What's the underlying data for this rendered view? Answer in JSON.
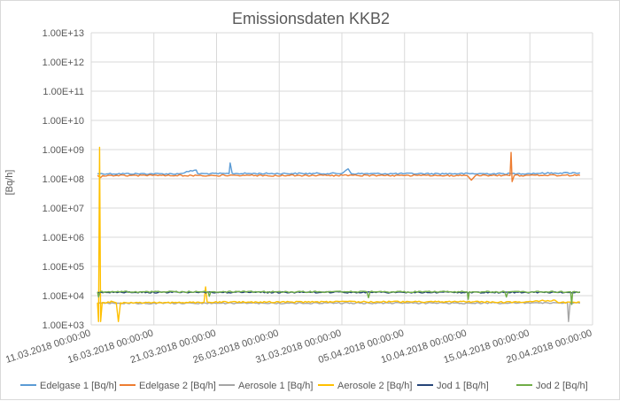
{
  "chart_data": {
    "type": "line",
    "title": "Emissionsdaten KKB2",
    "ylabel": "[Bq/h]",
    "xlabel": "",
    "y_scale": "log",
    "ylim": [
      "1.00E+03",
      "1.00E+13"
    ],
    "y_ticks": [
      "1.00E+03",
      "1.00E+04",
      "1.00E+05",
      "1.00E+06",
      "1.00E+07",
      "1.00E+08",
      "1.00E+09",
      "1.00E+10",
      "1.00E+11",
      "1.00E+12",
      "1.00E+13"
    ],
    "x_ticks": [
      "11.03.2018 00:00:00",
      "16.03.2018 00:00:00",
      "21.03.2018 00:00:00",
      "26.03.2018 00:00:00",
      "31.03.2018 00:00:00",
      "05.04.2018 00:00:00",
      "10.04.2018 00:00:00",
      "15.04.2018 00:00:00",
      "20.04.2018 00:00:00"
    ],
    "xlim": [
      "11.03.2018 00:00:00",
      "20.04.2018 00:00:00"
    ],
    "grid": true,
    "legend_position": "bottom",
    "series": [
      {
        "name": "Edelgase 1 [Bq/h]",
        "color": "#5b9bd5",
        "base": 150000000,
        "start": "11.03.2018 12:00:00",
        "end": "19.04.2018 00:00:00",
        "points": [
          {
            "x": "11.03.2018 12:00:00",
            "y": 150000000
          },
          {
            "x": "18.03.2018 00:00:00",
            "y": 148000000
          },
          {
            "x": "19.03.2018 09:00:00",
            "y": 200000000
          },
          {
            "x": "19.03.2018 12:00:00",
            "y": 150000000
          },
          {
            "x": "22.03.2018 00:00:00",
            "y": 150000000
          },
          {
            "x": "22.03.2018 02:00:00",
            "y": 350000000
          },
          {
            "x": "22.03.2018 06:00:00",
            "y": 152000000
          },
          {
            "x": "31.03.2018 00:00:00",
            "y": 152000000
          },
          {
            "x": "31.03.2018 12:00:00",
            "y": 220000000
          },
          {
            "x": "31.03.2018 18:00:00",
            "y": 150000000
          },
          {
            "x": "14.04.2018 00:00:00",
            "y": 150000000
          },
          {
            "x": "17.04.2018 00:00:00",
            "y": 158000000
          },
          {
            "x": "19.04.2018 00:00:00",
            "y": 160000000
          }
        ]
      },
      {
        "name": "Edelgase 2 [Bq/h]",
        "color": "#ed7d31",
        "base": 130000000,
        "start": "11.03.2018 12:00:00",
        "end": "19.04.2018 00:00:00",
        "points": [
          {
            "x": "11.03.2018 12:00:00",
            "y": 130000000
          },
          {
            "x": "11.03.2018 18:00:00",
            "y": 110000000
          },
          {
            "x": "11.03.2018 22:00:00",
            "y": 130000000
          },
          {
            "x": "10.04.2018 00:00:00",
            "y": 130000000
          },
          {
            "x": "10.04.2018 08:00:00",
            "y": 90000000
          },
          {
            "x": "10.04.2018 16:00:00",
            "y": 130000000
          },
          {
            "x": "13.04.2018 10:00:00",
            "y": 130000000
          },
          {
            "x": "13.04.2018 12:00:00",
            "y": 800000000
          },
          {
            "x": "13.04.2018 14:00:00",
            "y": 80000000
          },
          {
            "x": "13.04.2018 18:00:00",
            "y": 130000000
          },
          {
            "x": "19.04.2018 00:00:00",
            "y": 132000000
          }
        ]
      },
      {
        "name": "Aerosole 1 [Bq/h]",
        "color": "#a5a5a5",
        "base": 5500,
        "start": "11.03.2018 12:00:00",
        "end": "19.04.2018 00:00:00",
        "points": [
          {
            "x": "11.03.2018 12:00:00",
            "y": 5500
          },
          {
            "x": "18.04.2018 00:00:00",
            "y": 5600
          },
          {
            "x": "18.04.2018 02:00:00",
            "y": 1300
          },
          {
            "x": "18.04.2018 05:00:00",
            "y": 5600
          },
          {
            "x": "19.04.2018 00:00:00",
            "y": 5500
          }
        ]
      },
      {
        "name": "Aerosole 2 [Bq/h]",
        "color": "#ffc000",
        "base": 5800,
        "start": "11.03.2018 12:00:00",
        "end": "19.04.2018 00:00:00",
        "points": [
          {
            "x": "11.03.2018 12:00:00",
            "y": 5800
          },
          {
            "x": "11.03.2018 14:00:00",
            "y": 1300
          },
          {
            "x": "11.03.2018 16:00:00",
            "y": 1200000000
          },
          {
            "x": "11.03.2018 18:00:00",
            "y": 1300
          },
          {
            "x": "11.03.2018 21:00:00",
            "y": 5800
          },
          {
            "x": "12.03.2018 12:00:00",
            "y": 5800
          },
          {
            "x": "12.03.2018 14:00:00",
            "y": 6500
          },
          {
            "x": "13.03.2018 00:00:00",
            "y": 5700
          },
          {
            "x": "13.03.2018 04:00:00",
            "y": 1300
          },
          {
            "x": "13.03.2018 08:00:00",
            "y": 5700
          },
          {
            "x": "20.03.2018 00:00:00",
            "y": 5900
          },
          {
            "x": "20.03.2018 03:00:00",
            "y": 20000
          },
          {
            "x": "20.03.2018 06:00:00",
            "y": 6000
          },
          {
            "x": "08.04.2018 00:00:00",
            "y": 6200
          },
          {
            "x": "14.04.2018 00:00:00",
            "y": 6000
          },
          {
            "x": "17.04.2018 00:00:00",
            "y": 7000
          },
          {
            "x": "17.04.2018 06:00:00",
            "y": 5800
          },
          {
            "x": "19.04.2018 00:00:00",
            "y": 6000
          }
        ]
      },
      {
        "name": "Jod 1 [Bq/h]",
        "color": "#264478",
        "base": 13000,
        "start": "11.03.2018 12:00:00",
        "end": "19.04.2018 00:00:00",
        "points": [
          {
            "x": "11.03.2018 12:00:00",
            "y": 13000
          },
          {
            "x": "19.04.2018 00:00:00",
            "y": 13000
          }
        ]
      },
      {
        "name": "Jod 2 [Bq/h]",
        "color": "#70ad47",
        "base": 13500,
        "start": "11.03.2018 12:00:00",
        "end": "19.04.2018 00:00:00",
        "points": [
          {
            "x": "11.03.2018 12:00:00",
            "y": 13500
          },
          {
            "x": "11.03.2018 14:00:00",
            "y": 9000
          },
          {
            "x": "11.03.2018 17:00:00",
            "y": 13500
          },
          {
            "x": "20.03.2018 08:00:00",
            "y": 13500
          },
          {
            "x": "20.03.2018 10:00:00",
            "y": 9500
          },
          {
            "x": "20.03.2018 13:00:00",
            "y": 13500
          },
          {
            "x": "02.04.2018 00:00:00",
            "y": 13500
          },
          {
            "x": "02.04.2018 03:00:00",
            "y": 8500
          },
          {
            "x": "02.04.2018 06:00:00",
            "y": 13500
          },
          {
            "x": "10.04.2018 00:00:00",
            "y": 13500
          },
          {
            "x": "10.04.2018 02:00:00",
            "y": 7500
          },
          {
            "x": "10.04.2018 04:00:00",
            "y": 13500
          },
          {
            "x": "13.04.2018 00:00:00",
            "y": 13500
          },
          {
            "x": "13.04.2018 03:00:00",
            "y": 9000
          },
          {
            "x": "13.04.2018 06:00:00",
            "y": 13500
          },
          {
            "x": "18.04.2018 06:00:00",
            "y": 13500
          },
          {
            "x": "18.04.2018 08:00:00",
            "y": 5000
          },
          {
            "x": "18.04.2018 10:00:00",
            "y": 13500
          },
          {
            "x": "19.04.2018 00:00:00",
            "y": 13500
          }
        ]
      }
    ]
  }
}
